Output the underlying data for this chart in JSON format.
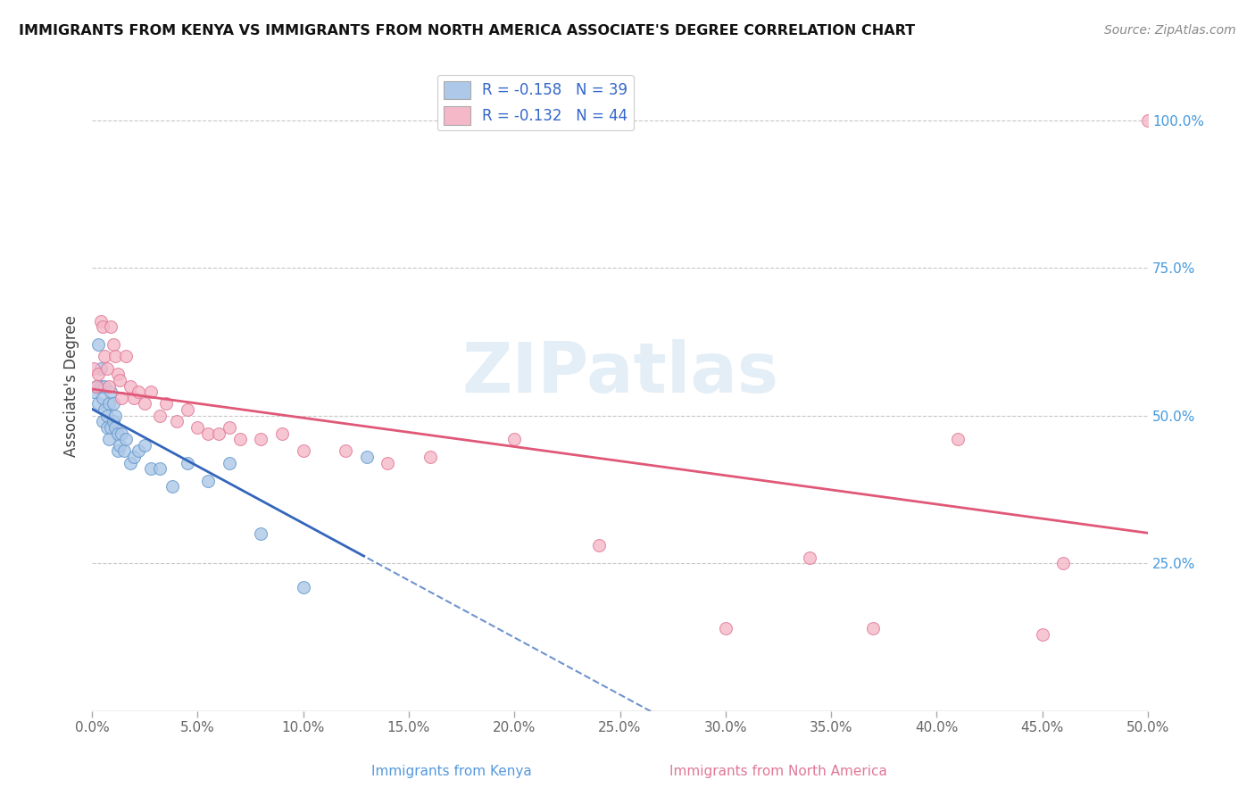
{
  "title": "IMMIGRANTS FROM KENYA VS IMMIGRANTS FROM NORTH AMERICA ASSOCIATE'S DEGREE CORRELATION CHART",
  "source": "Source: ZipAtlas.com",
  "ylabel": "Associate's Degree",
  "y_ticks_labels": [
    "100.0%",
    "75.0%",
    "50.0%",
    "25.0%"
  ],
  "y_ticks_vals": [
    1.0,
    0.75,
    0.5,
    0.25
  ],
  "xlim": [
    0.0,
    0.5
  ],
  "ylim": [
    0.0,
    1.1
  ],
  "legend_R1": "R = -0.158",
  "legend_N1": "N = 39",
  "legend_R2": "R = -0.132",
  "legend_N2": "N = 44",
  "kenya_color": "#adc8e8",
  "kenya_edge": "#6699cc",
  "kenya_line_color": "#3366bb",
  "north_america_color": "#f5b8c8",
  "north_america_edge": "#e07898",
  "north_america_line_color": "#e05878",
  "scatter_size": 100,
  "kenya_x": [
    0.001,
    0.002,
    0.003,
    0.003,
    0.004,
    0.004,
    0.005,
    0.005,
    0.006,
    0.006,
    0.007,
    0.007,
    0.008,
    0.008,
    0.009,
    0.009,
    0.01,
    0.01,
    0.011,
    0.011,
    0.012,
    0.012,
    0.013,
    0.014,
    0.015,
    0.016,
    0.018,
    0.02,
    0.022,
    0.025,
    0.028,
    0.032,
    0.038,
    0.045,
    0.055,
    0.065,
    0.08,
    0.1,
    0.13
  ],
  "kenya_y": [
    0.54,
    0.55,
    0.62,
    0.52,
    0.55,
    0.58,
    0.53,
    0.49,
    0.51,
    0.55,
    0.5,
    0.48,
    0.52,
    0.46,
    0.48,
    0.54,
    0.49,
    0.52,
    0.48,
    0.5,
    0.44,
    0.47,
    0.45,
    0.47,
    0.44,
    0.46,
    0.42,
    0.43,
    0.44,
    0.45,
    0.41,
    0.41,
    0.38,
    0.42,
    0.39,
    0.42,
    0.3,
    0.21,
    0.43
  ],
  "north_america_x": [
    0.001,
    0.002,
    0.003,
    0.004,
    0.005,
    0.006,
    0.007,
    0.008,
    0.009,
    0.01,
    0.011,
    0.012,
    0.013,
    0.014,
    0.016,
    0.018,
    0.02,
    0.022,
    0.025,
    0.028,
    0.032,
    0.035,
    0.04,
    0.045,
    0.05,
    0.055,
    0.06,
    0.065,
    0.07,
    0.08,
    0.09,
    0.1,
    0.12,
    0.14,
    0.16,
    0.2,
    0.24,
    0.3,
    0.34,
    0.37,
    0.41,
    0.45,
    0.46,
    0.5
  ],
  "north_america_y": [
    0.58,
    0.55,
    0.57,
    0.66,
    0.65,
    0.6,
    0.58,
    0.55,
    0.65,
    0.62,
    0.6,
    0.57,
    0.56,
    0.53,
    0.6,
    0.55,
    0.53,
    0.54,
    0.52,
    0.54,
    0.5,
    0.52,
    0.49,
    0.51,
    0.48,
    0.47,
    0.47,
    0.48,
    0.46,
    0.46,
    0.47,
    0.44,
    0.44,
    0.42,
    0.43,
    0.46,
    0.28,
    0.14,
    0.26,
    0.14,
    0.46,
    0.13,
    0.25,
    1.0
  ],
  "watermark_text": "ZIPatlas",
  "background_color": "#ffffff",
  "grid_color": "#c8c8c8",
  "x_tick_count": 11
}
